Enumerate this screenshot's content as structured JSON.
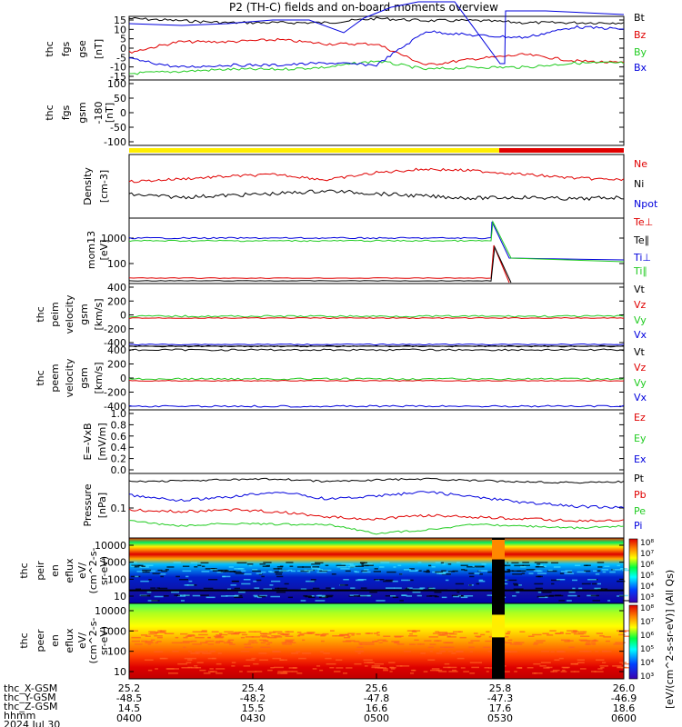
{
  "title": "P2 (TH-C) fields and on-board moments overview",
  "colors": {
    "black": "#000000",
    "red": "#e00000",
    "green": "#22cc22",
    "blue": "#0000dd",
    "yellow": "#ffee00"
  },
  "chart_data": [
    {
      "type": "line",
      "panel": "fgs",
      "ylabel": [
        "thc",
        "fgs",
        "gse",
        "[nT]"
      ],
      "ylim": [
        -15,
        15
      ],
      "yticks": [
        "15",
        "10",
        "5",
        "0",
        "-5",
        "-10",
        "-15"
      ],
      "series": [
        {
          "name": "Bt",
          "color": "black",
          "values": [
            14,
            13,
            12,
            12,
            12,
            14,
            13,
            13,
            12,
            12,
            12
          ]
        },
        {
          "name": "Bz",
          "color": "red",
          "values": [
            -2,
            3,
            3,
            4,
            2,
            2,
            -8,
            -5,
            -3,
            -6,
            -7
          ]
        },
        {
          "name": "By",
          "color": "green",
          "values": [
            -12,
            -11,
            -10,
            -10,
            -9,
            -6,
            -10,
            -9,
            -9,
            -7,
            -7
          ]
        },
        {
          "name": "Bx",
          "color": "blue",
          "values": [
            -5,
            -9,
            -8,
            -8,
            -7,
            -8,
            8,
            6,
            5,
            10,
            9
          ]
        }
      ]
    },
    {
      "type": "line",
      "panel": "fgs_gsm",
      "ylabel": [
        "thc",
        "fgs",
        "gsm",
        "-180",
        "[nT]"
      ],
      "ylim": [
        -120,
        100
      ],
      "yticks": [
        "100",
        "50",
        "0",
        "-50",
        "-100"
      ],
      "series": []
    },
    {
      "type": "bar",
      "panel": "flag",
      "colors": [
        "yellow",
        "red"
      ],
      "split_x": 25.8
    },
    {
      "type": "line",
      "panel": "density",
      "ylabel": [
        "Density",
        "[cm-3]"
      ],
      "log": true,
      "series": [
        {
          "name": "Ne",
          "color": "red"
        },
        {
          "name": "Ni",
          "color": "black"
        },
        {
          "name": "Npot",
          "color": "blue"
        }
      ]
    },
    {
      "type": "line",
      "panel": "temperature",
      "ylabel": [
        "mom13",
        "[eV]"
      ],
      "log": true,
      "yticks": [
        "1000",
        "100"
      ],
      "series": [
        {
          "name": "Te⊥",
          "color": "red"
        },
        {
          "name": "Te∥",
          "color": "black"
        },
        {
          "name": "Ti⊥",
          "color": "blue"
        },
        {
          "name": "Ti∥",
          "color": "green"
        }
      ]
    },
    {
      "type": "line",
      "panel": "peim_velocity",
      "ylabel": [
        "thc",
        "peim",
        "velocity",
        "gsm",
        "[km/s]"
      ],
      "ylim": [
        -500,
        500
      ],
      "yticks": [
        "400",
        "200",
        "0",
        "-200",
        "-400"
      ],
      "series": [
        {
          "name": "Vt",
          "color": "black"
        },
        {
          "name": "Vz",
          "color": "red"
        },
        {
          "name": "Vy",
          "color": "green"
        },
        {
          "name": "Vx",
          "color": "blue"
        }
      ]
    },
    {
      "type": "line",
      "panel": "peem_velocity",
      "ylabel": [
        "thc",
        "peem",
        "velocity",
        "gsm",
        "[km/s]"
      ],
      "ylim": [
        -500,
        500
      ],
      "yticks": [
        "400",
        "200",
        "0",
        "-200",
        "-400"
      ],
      "series": [
        {
          "name": "Vt",
          "color": "black"
        },
        {
          "name": "Vz",
          "color": "red"
        },
        {
          "name": "Vy",
          "color": "green"
        },
        {
          "name": "Vx",
          "color": "blue"
        }
      ]
    },
    {
      "type": "line",
      "panel": "efield",
      "ylabel": [
        "E=-VxB",
        "[mV/m]"
      ],
      "ylim": [
        0,
        1
      ],
      "yticks": [
        "1.0",
        "0.8",
        "0.6",
        "0.4",
        "0.2",
        "0.0"
      ],
      "series": [
        {
          "name": "Ez",
          "color": "red"
        },
        {
          "name": "Ey",
          "color": "green"
        },
        {
          "name": "Ex",
          "color": "blue"
        }
      ]
    },
    {
      "type": "line",
      "panel": "pressure",
      "ylabel": [
        "Pressure",
        "[nPa]"
      ],
      "log": true,
      "yticks": [
        "0.1"
      ],
      "series": [
        {
          "name": "Pt",
          "color": "black"
        },
        {
          "name": "Pb",
          "color": "red"
        },
        {
          "name": "Pe",
          "color": "green"
        },
        {
          "name": "Pi",
          "color": "blue"
        }
      ]
    },
    {
      "type": "heatmap",
      "panel": "peir",
      "ylabel": [
        "thc",
        "peir",
        "en",
        "eflux",
        "eV/",
        "(cm^2-s-",
        "sr-eV)"
      ],
      "log": true,
      "yticks": [
        "10000",
        "1000",
        "100",
        "10"
      ]
    },
    {
      "type": "heatmap",
      "panel": "peer",
      "ylabel": [
        "thc",
        "peer",
        "en",
        "eflux",
        "eV/",
        "(cm^2-s-",
        "sr-eV)"
      ],
      "log": true,
      "yticks": [
        "10000",
        "1000",
        "100",
        "10"
      ]
    }
  ],
  "colorbar": {
    "label": "[eV/(cm^2-s-sr-eV)] (All Qs)",
    "ticks_top": [
      "10⁸",
      "10⁷",
      "10⁶",
      "10⁵",
      "10⁴",
      "10³"
    ],
    "ticks_bottom": [
      "10⁸",
      "10⁷",
      "10⁶",
      "10⁵",
      "10⁴",
      "10³"
    ]
  },
  "right_legend": {
    "fgs": [
      "Bt",
      "Bz",
      "By",
      "Bx"
    ],
    "density": [
      "Ne",
      "Ni",
      "Npot"
    ],
    "temperature": [
      "Te⊥",
      "Te∥",
      "Ti⊥",
      "Ti∥"
    ],
    "peim": [
      "Vt",
      "Vz",
      "Vy",
      "Vx"
    ],
    "peem": [
      "Vt",
      "Vz",
      "Vy",
      "Vx"
    ],
    "efield": [
      "Ez",
      "Ey",
      "Ex"
    ],
    "pressure": [
      "Pt",
      "Pb",
      "Pe",
      "Pi"
    ]
  },
  "x_axis": {
    "row_labels": [
      "thc_X-GSM",
      "thc_Y-GSM",
      "thc_Z-GSM",
      "hhmm",
      "2024 Jul 30"
    ],
    "ticks": [
      {
        "x": "25.2",
        "y": "-48.5",
        "z": "14.5",
        "hhmm": "0400"
      },
      {
        "x": "25.4",
        "y": "-48.2",
        "z": "15.5",
        "hhmm": "0430"
      },
      {
        "x": "25.6",
        "y": "-47.8",
        "z": "16.6",
        "hhmm": "0500"
      },
      {
        "x": "25.8",
        "y": "-47.3",
        "z": "17.6",
        "hhmm": "0530"
      },
      {
        "x": "26.0",
        "y": "-46.9",
        "z": "18.6",
        "hhmm": "0600"
      }
    ]
  }
}
